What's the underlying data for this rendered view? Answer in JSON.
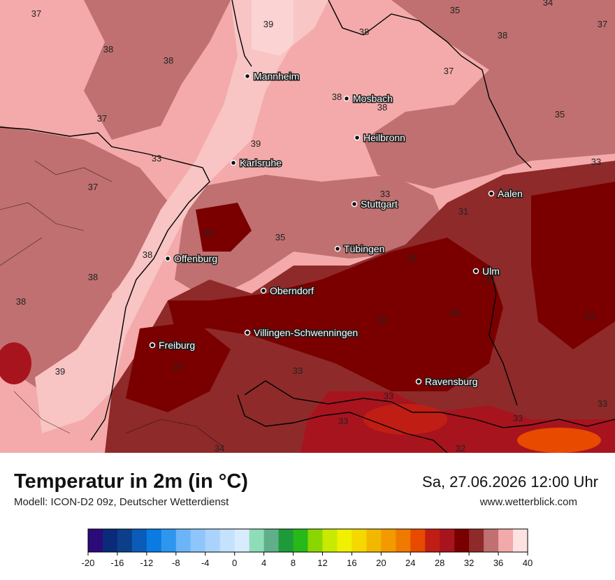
{
  "title": "Temperatur in 2m (in °C)",
  "subtitle": "Modell: ICON-D2 09z, Deutscher Wetterdienst",
  "datetime": "Sa, 27.06.2026 12:00 Uhr",
  "website": "www.wetterblick.com",
  "cities": [
    {
      "name": "Mannheim"
    },
    {
      "name": "Mosbach"
    },
    {
      "name": "Heilbronn"
    },
    {
      "name": "Karlsruhe"
    },
    {
      "name": "Stuttgart"
    },
    {
      "name": "Aalen"
    },
    {
      "name": "Tübingen"
    },
    {
      "name": "Offenburg"
    },
    {
      "name": "Ulm"
    },
    {
      "name": "Oberndorf"
    },
    {
      "name": "Villingen-Schwenningen"
    },
    {
      "name": "Freiburg"
    },
    {
      "name": "Ravensburg"
    }
  ],
  "value_labels": [
    "37",
    "39",
    "38",
    "35",
    "34",
    "38",
    "37",
    "38",
    "38",
    "37",
    "38",
    "38",
    "35",
    "37",
    "33",
    "39",
    "37",
    "33",
    "33",
    "37",
    "31",
    "29",
    "35",
    "38",
    "31",
    "38",
    "31",
    "38",
    "34",
    "34",
    "31",
    "39",
    "27",
    "33",
    "33",
    "33",
    "33",
    "33",
    "34",
    "32"
  ],
  "legend": {
    "ticks": [
      "-20",
      "-16",
      "-12",
      "-8",
      "-4",
      "0",
      "4",
      "8",
      "12",
      "16",
      "20",
      "24",
      "28",
      "32",
      "36",
      "40"
    ],
    "colors": [
      "#2c0a7a",
      "#0a2a7a",
      "#0b3f8a",
      "#0a5cb8",
      "#0a7be0",
      "#2f96f0",
      "#6cb4f8",
      "#8ec6fb",
      "#a9d3fc",
      "#c4e1fd",
      "#d9ecfe",
      "#8fdcb8",
      "#5fb08a",
      "#1e9a3a",
      "#28b81a",
      "#8ad600",
      "#c8ea00",
      "#f0f000",
      "#f4d800",
      "#f2b800",
      "#f29a00",
      "#ef7a00",
      "#e84a00",
      "#c01e14",
      "#a8141e",
      "#7a0000",
      "#8f2a2a",
      "#c07070",
      "#f2a9a9",
      "#fde2e2"
    ]
  }
}
